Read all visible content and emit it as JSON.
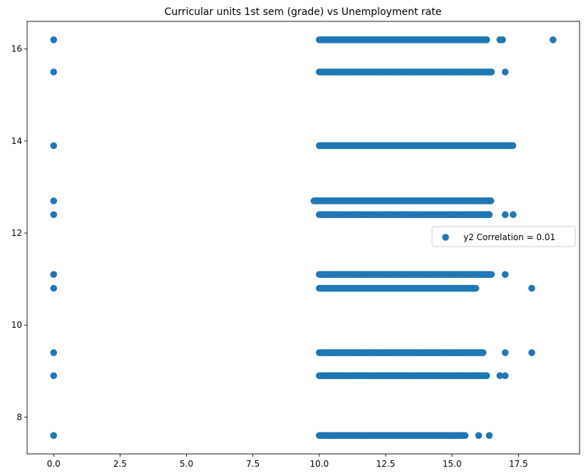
{
  "chart_data": {
    "type": "scatter",
    "title": "Curricular units 1st sem (grade) vs Unemployment rate",
    "xlabel": "",
    "ylabel": "",
    "xlim": [
      -1.0,
      19.8
    ],
    "ylim": [
      7.2,
      16.6
    ],
    "x_ticks": [
      0,
      2.5,
      5,
      7.5,
      10,
      12.5,
      15,
      17.5
    ],
    "x_tick_labels": [
      "0.0",
      "2.5",
      "5.0",
      "7.5",
      "10.0",
      "12.5",
      "15.0",
      "17.5"
    ],
    "y_ticks": [
      8,
      10,
      12,
      14,
      16
    ],
    "y_tick_labels": [
      "8",
      "10",
      "12",
      "14",
      "16"
    ],
    "grid": false,
    "legend": {
      "entries": [
        "y2 Correlation = 0.01"
      ],
      "placement": "center-right"
    },
    "colors": {
      "series": "#1f77b4",
      "axes": "#000000",
      "legend_border": "#cccccc"
    },
    "series": [
      {
        "name": "y2 Correlation = 0.01",
        "zero_points": [
          [
            0,
            7.6
          ],
          [
            0,
            8.9
          ],
          [
            0,
            9.4
          ],
          [
            0,
            10.8
          ],
          [
            0,
            11.1
          ],
          [
            0,
            12.4
          ],
          [
            0,
            12.7
          ],
          [
            0,
            13.9
          ],
          [
            0,
            15.5
          ],
          [
            0,
            16.2
          ]
        ],
        "bands": [
          {
            "y": 16.2,
            "min": 10.0,
            "max": 16.3,
            "outliers": [
              16.8,
              16.9,
              18.8
            ]
          },
          {
            "y": 15.5,
            "min": 10.0,
            "max": 16.5,
            "outliers": [
              17.0
            ]
          },
          {
            "y": 13.9,
            "min": 10.0,
            "max": 17.3,
            "outliers": []
          },
          {
            "y": 12.7,
            "min": 9.8,
            "max": 16.5,
            "outliers": []
          },
          {
            "y": 12.4,
            "min": 10.0,
            "max": 16.4,
            "outliers": [
              16.0,
              16.4,
              17.0,
              17.3
            ]
          },
          {
            "y": 11.1,
            "min": 10.0,
            "max": 16.5,
            "outliers": [
              17.0
            ]
          },
          {
            "y": 10.8,
            "min": 10.0,
            "max": 15.9,
            "outliers": [
              18.0
            ]
          },
          {
            "y": 9.4,
            "min": 10.0,
            "max": 16.2,
            "outliers": [
              17.0,
              18.0
            ]
          },
          {
            "y": 8.9,
            "min": 10.0,
            "max": 16.3,
            "outliers": [
              16.8,
              17.0
            ]
          },
          {
            "y": 7.6,
            "min": 10.0,
            "max": 15.5,
            "outliers": [
              16.0,
              16.4
            ]
          }
        ]
      }
    ]
  }
}
